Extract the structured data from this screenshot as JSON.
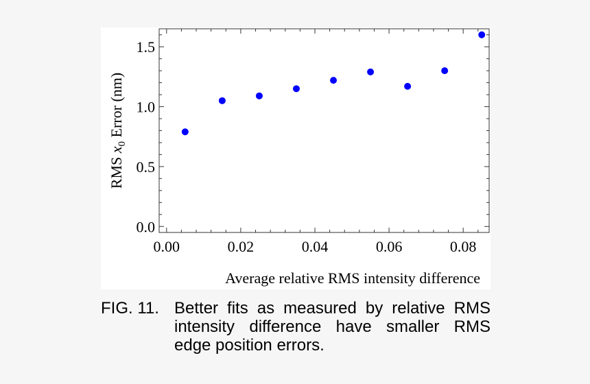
{
  "chart_data": {
    "type": "scatter",
    "x": [
      0.005,
      0.015,
      0.025,
      0.035,
      0.045,
      0.055,
      0.065,
      0.075,
      0.085
    ],
    "y": [
      0.79,
      1.05,
      1.09,
      1.15,
      1.22,
      1.29,
      1.17,
      1.3,
      1.6
    ],
    "xlabel": "Average relative RMS intensity difference",
    "ylabel_prefix": "RMS ",
    "ylabel_var": "x",
    "ylabel_sub": "0",
    "ylabel_suffix": " Error (nm)",
    "xlim": [
      -0.002,
      0.087
    ],
    "ylim": [
      -0.05,
      1.65
    ],
    "xticks": [
      "0.00",
      "0.02",
      "0.04",
      "0.06",
      "0.08"
    ],
    "xtick_values": [
      0,
      0.02,
      0.04,
      0.06,
      0.08
    ],
    "yticks": [
      "0.0",
      "0.5",
      "1.0",
      "1.5"
    ],
    "ytick_values": [
      0,
      0.5,
      1.0,
      1.5
    ],
    "grid": false,
    "marker_color": "#0000ff"
  },
  "caption": {
    "label": "FIG. 11.",
    "text": "Better fits as measured by relative RMS intensity difference have smaller RMS edge position errors."
  }
}
